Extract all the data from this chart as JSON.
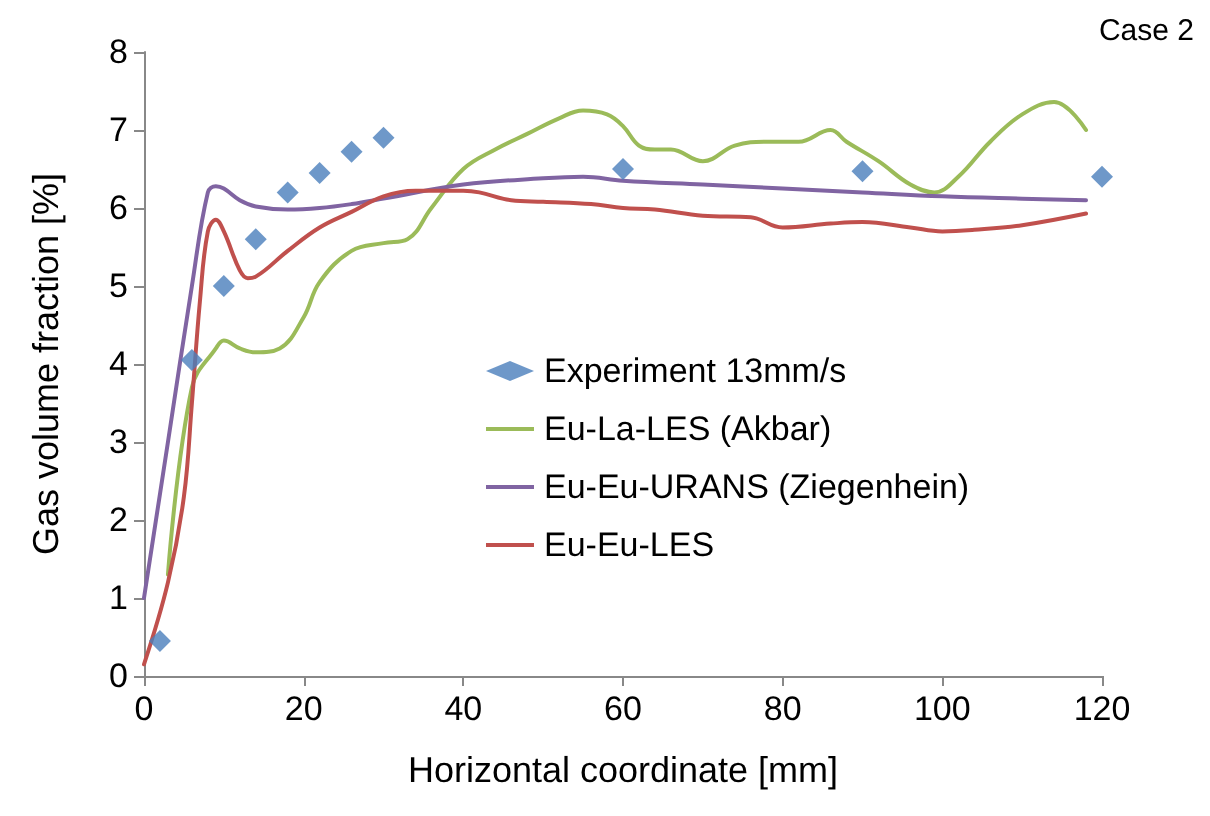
{
  "chart_data": {
    "type": "line",
    "xlabel": "Horizontal coordinate [mm]",
    "ylabel": "Gas volume fraction [%]",
    "annotations": [
      "Case 2"
    ],
    "xlim": [
      0,
      120
    ],
    "xticks": [
      0,
      20,
      40,
      60,
      80,
      100,
      120
    ],
    "ylim": [
      0,
      8
    ],
    "yticks": [
      0,
      1,
      2,
      3,
      4,
      5,
      6,
      7,
      8
    ],
    "grid": false,
    "legend": "right",
    "line_style": "solid",
    "series": [
      {
        "name": "Experiment 13mm/s",
        "type": "scatter",
        "marker": "diamond",
        "color": "#4a7ebb",
        "x": [
          2,
          6,
          10,
          14,
          18,
          22,
          26,
          30,
          60,
          90,
          120
        ],
        "values": [
          0.45,
          4.05,
          5.0,
          5.6,
          6.2,
          6.45,
          6.72,
          6.9,
          6.5,
          6.47,
          6.4
        ]
      },
      {
        "name": "Eu-La-LES (Akbar)",
        "marker": "none",
        "color": "#9bbb59",
        "x": [
          3,
          6,
          9,
          10,
          12,
          14,
          17,
          20,
          22,
          26,
          30,
          33,
          36,
          40,
          44,
          48,
          52,
          55,
          58,
          60,
          62,
          64,
          66,
          70,
          74,
          78,
          82,
          86,
          88,
          92,
          96,
          99,
          102,
          106,
          110,
          114,
          118
        ],
        "values": [
          1.3,
          3.7,
          4.2,
          4.3,
          4.2,
          4.15,
          4.2,
          4.6,
          5.05,
          5.45,
          5.55,
          5.6,
          6.0,
          6.5,
          6.75,
          6.95,
          7.15,
          7.25,
          7.2,
          7.05,
          6.8,
          6.75,
          6.75,
          6.6,
          6.8,
          6.85,
          6.85,
          7.0,
          6.85,
          6.6,
          6.3,
          6.2,
          6.4,
          6.85,
          7.2,
          7.36,
          7.0
        ]
      },
      {
        "name": "Eu-Eu-URANS (Ziegenhein)",
        "marker": "none",
        "color": "#8064a2",
        "x": [
          0,
          3,
          6,
          8,
          9,
          10,
          12,
          14,
          18,
          22,
          26,
          30,
          40,
          50,
          55,
          60,
          70,
          80,
          90,
          100,
          110,
          118
        ],
        "values": [
          1.0,
          3.0,
          5.0,
          6.2,
          6.28,
          6.25,
          6.1,
          6.02,
          5.98,
          6.0,
          6.05,
          6.12,
          6.3,
          6.38,
          6.4,
          6.35,
          6.3,
          6.25,
          6.2,
          6.15,
          6.12,
          6.1
        ]
      },
      {
        "name": "Eu-Eu-LES",
        "marker": "none",
        "color": "#c0504d",
        "x": [
          0,
          3,
          5,
          6,
          7,
          8,
          9,
          10,
          12,
          13,
          14,
          18,
          22,
          26,
          30,
          34,
          40,
          42,
          46,
          50,
          56,
          60,
          64,
          70,
          76,
          80,
          86,
          90,
          96,
          100,
          104,
          110,
          118
        ],
        "values": [
          0.15,
          1.2,
          2.3,
          3.5,
          4.8,
          5.7,
          5.85,
          5.7,
          5.2,
          5.1,
          5.12,
          5.45,
          5.75,
          5.95,
          6.15,
          6.22,
          6.22,
          6.2,
          6.1,
          6.08,
          6.05,
          6.0,
          5.98,
          5.9,
          5.88,
          5.75,
          5.8,
          5.82,
          5.75,
          5.7,
          5.72,
          5.78,
          5.93
        ]
      }
    ]
  }
}
